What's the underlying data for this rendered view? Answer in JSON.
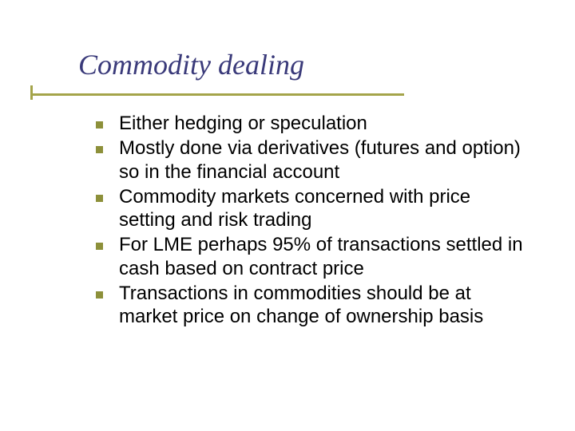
{
  "slide": {
    "title": "Commodity dealing",
    "title_color": "#3a3a7a",
    "title_fontsize": 36,
    "rule_color": "#a4a44a",
    "bullet_marker_color": "#8d903a",
    "bullet_fontsize": 24,
    "text_color": "#000000",
    "background_color": "#ffffff",
    "bullets": [
      {
        "text": "Either hedging or speculation"
      },
      {
        "text": "Mostly done via derivatives (futures and option)  so in the financial account"
      },
      {
        "text": "Commodity markets concerned with price setting and risk trading"
      },
      {
        "text": "For LME perhaps 95% of transactions settled in cash based on contract price"
      },
      {
        "text": "Transactions in commodities should be at market price on change of ownership basis"
      }
    ]
  }
}
